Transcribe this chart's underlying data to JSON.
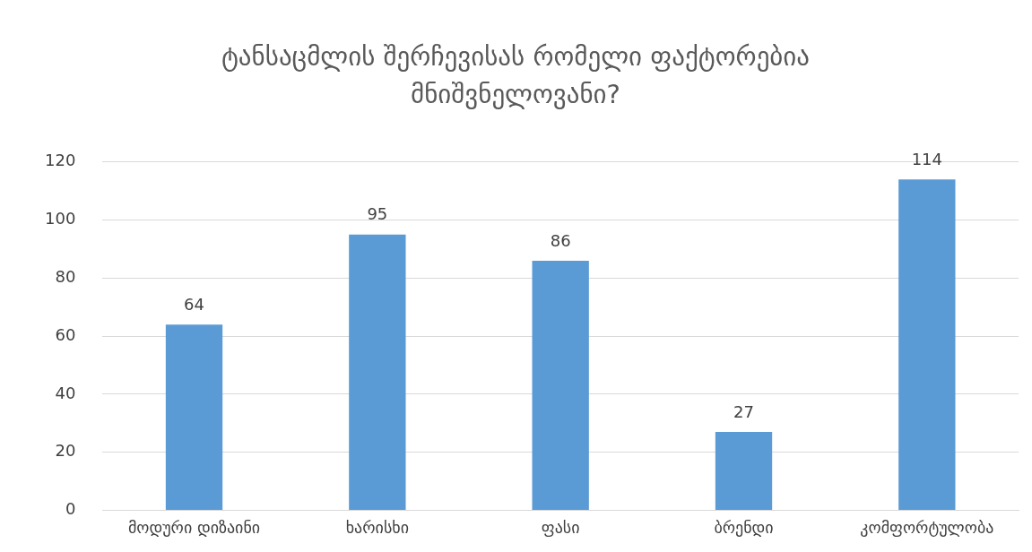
{
  "chart_data": {
    "type": "bar",
    "title": "ტანსაცმლის შერჩევისას რომელი ფაქტორებია მნიშვნელოვანი?",
    "categories": [
      "მოდური დიზაინი",
      "ხარისხი",
      "ფასი",
      "ბრენდი",
      "კომფორტულობა"
    ],
    "values": [
      64,
      95,
      86,
      27,
      114
    ],
    "color": "#5b9bd5",
    "ylim": [
      0,
      120
    ],
    "yticks": [
      0,
      20,
      40,
      60,
      80,
      100,
      120
    ],
    "grid": "y",
    "data_labels": true
  }
}
